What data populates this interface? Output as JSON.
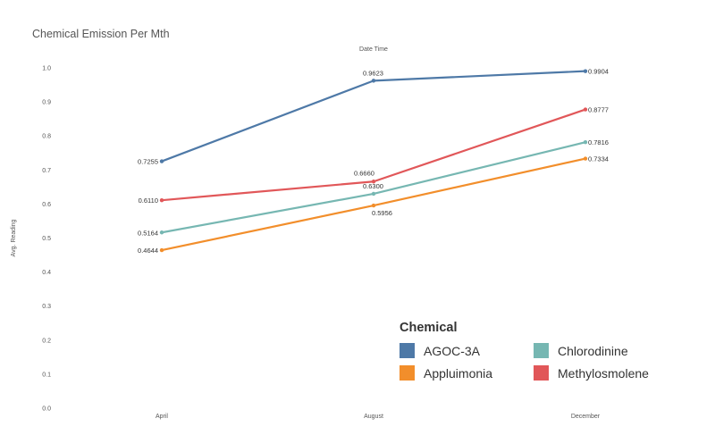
{
  "title": "Chemical Emission Per Mth",
  "chart_data": {
    "type": "line",
    "title": "Chemical Emission Per Mth",
    "column_header": "Date Time",
    "xlabel": "",
    "ylabel": "Avg. Reading",
    "categories": [
      "April",
      "August",
      "December"
    ],
    "ylim": [
      0.0,
      1.0
    ],
    "yticks": [
      "0.0",
      "0.1",
      "0.2",
      "0.3",
      "0.4",
      "0.5",
      "0.6",
      "0.7",
      "0.8",
      "0.9",
      "1.0"
    ],
    "grid": false,
    "legend_position": "bottom-right",
    "legend_title": "Chemical",
    "series": [
      {
        "name": "AGOC-3A",
        "color": "#4e79a7",
        "values": [
          0.7255,
          0.9623,
          0.9904
        ],
        "labels": [
          "0.7255",
          "0.9623",
          "0.9904"
        ]
      },
      {
        "name": "Appluimonia",
        "color": "#f28e2b",
        "values": [
          0.4644,
          0.5956,
          0.7334
        ],
        "labels": [
          "0.4644",
          "0.5956",
          "0.7334"
        ]
      },
      {
        "name": "Chlorodinine",
        "color": "#76b7b2",
        "values": [
          0.5164,
          0.63,
          0.7816
        ],
        "labels": [
          "0.5164",
          "0.6300",
          "0.7816"
        ]
      },
      {
        "name": "Methylosmolene",
        "color": "#e15759",
        "values": [
          0.611,
          0.666,
          0.8777
        ],
        "labels": [
          "0.6110",
          "0.6660",
          "0.8777"
        ]
      }
    ]
  }
}
